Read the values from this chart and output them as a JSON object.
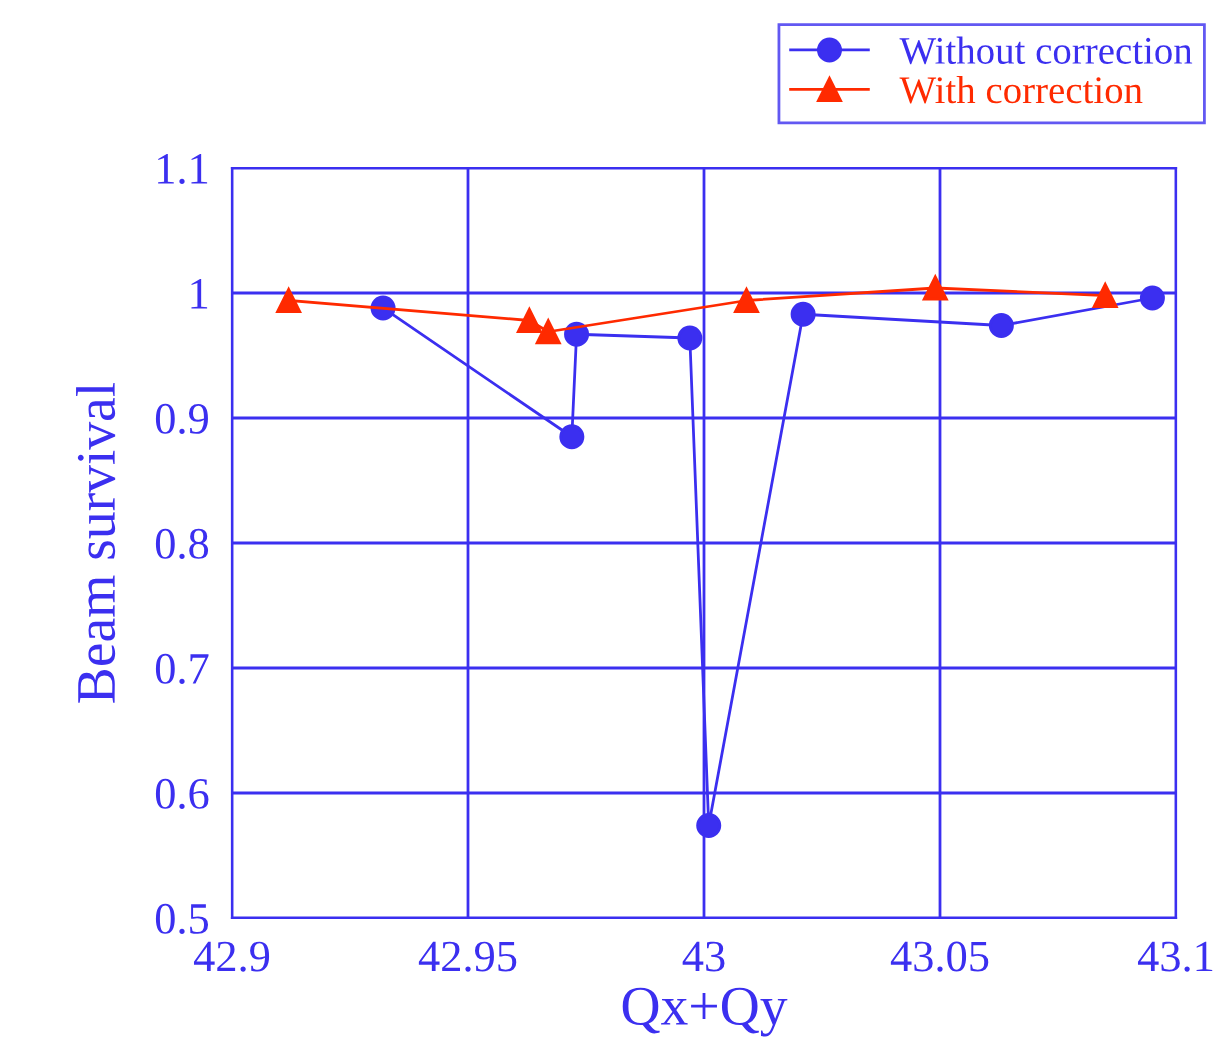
{
  "chart_data": {
    "type": "line",
    "xlabel": "Qx+Qy",
    "ylabel": "Beam survival",
    "xlim": [
      42.9,
      43.1
    ],
    "xticks": [
      42.9,
      42.95,
      43,
      43.05,
      43.1
    ],
    "ylim": [
      0.5,
      1.1
    ],
    "yticks": [
      0.5,
      0.6,
      0.7,
      0.8,
      0.9,
      1,
      1.1
    ],
    "grid": true,
    "legend": "top right",
    "series": [
      {
        "name": "Without correction",
        "color": "#3b2ff0",
        "marker": "circle",
        "x": [
          42.932,
          42.972,
          42.973,
          42.997,
          43.001,
          43.021,
          43.063,
          43.095
        ],
        "values": [
          0.988,
          0.885,
          0.967,
          0.964,
          0.574,
          0.983,
          0.974,
          0.996
        ]
      },
      {
        "name": "With correction",
        "color": "#ff2a00",
        "marker": "triangle",
        "x": [
          42.912,
          42.963,
          42.967,
          43.009,
          43.049,
          43.085
        ],
        "values": [
          0.994,
          0.978,
          0.969,
          0.994,
          1.004,
          0.998
        ]
      }
    ]
  }
}
